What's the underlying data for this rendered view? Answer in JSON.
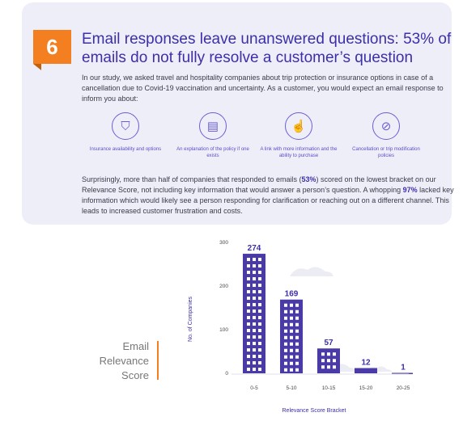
{
  "card": {
    "badge_number": "6",
    "headline": "Email responses leave unanswered questions: 53% of emails do not fully resolve a customer’s question",
    "intro": "In our study, we asked travel and hospitality companies about trip protection or insurance options in case of a cancellation due to Covid-19 vaccination and uncertainty. As a customer, you would expect an email response to inform you about:",
    "icons": [
      {
        "icon": "shield-icon",
        "glyph": "⛉",
        "caption": "Insurance availability and options"
      },
      {
        "icon": "document-icon",
        "glyph": "▤",
        "caption": "An explanation of the policy if one exists"
      },
      {
        "icon": "pointer-click-icon",
        "glyph": "☝",
        "caption": "A link with more information and the ability to purchase"
      },
      {
        "icon": "cancel-icon",
        "glyph": "⊘",
        "caption": "Cancellation or trip modification policies"
      }
    ],
    "summary_parts": {
      "p1": "Surprisingly, more than half of companies that responded to emails (",
      "b1": "53%",
      "p2": ") scored on the lowest bracket on our Relevance Score, not including key information that would answer a person’s question. A whopping ",
      "b2": "97%",
      "p3": " lacked key information which would likely see a person responding for clarification or reaching out on a different channel. This leads to increased customer frustration and costs."
    }
  },
  "side_label": {
    "line1": "Email",
    "line2": "Relevance",
    "line3": "Score"
  },
  "chart_data": {
    "type": "bar",
    "title": "",
    "categories": [
      "0-5",
      "5-10",
      "10-15",
      "15-20",
      "20-25"
    ],
    "values": [
      274,
      169,
      57,
      12,
      1
    ],
    "xlabel": "Relevance Score Bracket",
    "ylabel": "No. of Companies",
    "ylim": [
      0,
      300
    ],
    "yticks": [
      0,
      100,
      200,
      300
    ],
    "grid": false,
    "bar_color": "#4a3aa8",
    "label_color": "#3c2fa8"
  }
}
